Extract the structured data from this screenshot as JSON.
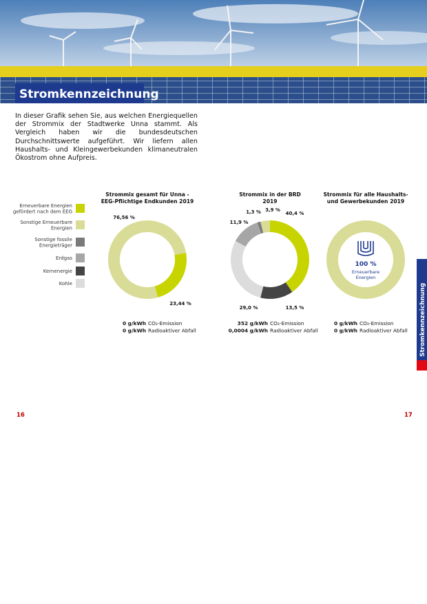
{
  "header": {
    "title": "Stromkennzeichnung"
  },
  "intro": "In dieser Grafik sehen Sie, aus welchen Energiequellen der Strommix der Stadtwerke Unna stammt. Als Vergleich haben wir die bundesdeutschen Durchschnittswerte aufgeführt. Wir liefern allen Haushalts- und Kleingewerbekunden klimaneutralen Ökostrom ohne Aufpreis.",
  "legend": [
    {
      "label": [
        "Erneuerbare Energien",
        "gefördert nach dem EEG"
      ],
      "color": "#c8d400"
    },
    {
      "label": [
        "Sonstige Erneuerbare",
        "Energien"
      ],
      "color": "#d9dc96"
    },
    {
      "label": [
        "Sonstige fossile",
        "Energieträger"
      ],
      "color": "#7a7a7a"
    },
    {
      "label": [
        "Erdgas"
      ],
      "color": "#a6a6a6"
    },
    {
      "label": [
        "Kernenergie"
      ],
      "color": "#444444"
    },
    {
      "label": [
        "Kohle"
      ],
      "color": "#dcdcdc"
    }
  ],
  "chart_data": [
    {
      "type": "pie",
      "title": [
        "Strommix gesamt für Unna -",
        "EEG-Pflichtige Endkunden 2019"
      ],
      "values": [
        23.44,
        76.56
      ],
      "value_labels": [
        "23,44 %",
        "76,56 %"
      ],
      "colors": [
        "#c8d400",
        "#d9dc96"
      ],
      "emissions": [
        {
          "value": "0 g/kWh",
          "label": "CO₂-Emission"
        },
        {
          "value": "0 g/kWh",
          "label": "Radioaktiver Abfall"
        }
      ]
    },
    {
      "type": "pie",
      "title": [
        "Strommix in der BRD",
        "2019"
      ],
      "values": [
        40.4,
        13.5,
        29.0,
        11.9,
        1.3,
        3.9
      ],
      "value_labels": [
        "40,4 %",
        "13,5 %",
        "29,0 %",
        "11,9 %",
        "1,3 %",
        "3,9 %"
      ],
      "colors": [
        "#c8d400",
        "#444444",
        "#dcdcdc",
        "#a6a6a6",
        "#7a7a7a",
        "#d9dc96"
      ],
      "emissions": [
        {
          "value": "352 g/kWh",
          "label": "CO₂-Emission"
        },
        {
          "value": "0,0004 g/kWh",
          "label": "Radioaktiver Abfall"
        }
      ]
    },
    {
      "type": "pie",
      "title": [
        "Strommix für alle Haushalts-",
        "und Gewerbekunden 2019"
      ],
      "values": [
        100
      ],
      "value_labels": [
        "100 %"
      ],
      "colors": [
        "#d9dc96"
      ],
      "center_label": [
        "Erneuerbare",
        "Energien"
      ],
      "emissions": [
        {
          "value": "0 g/kWh",
          "label": "CO₂-Emission"
        },
        {
          "value": "0 g/kWh",
          "label": "Radioaktiver Abfall"
        }
      ]
    }
  ],
  "side_tab": "Stromkennzeichnung",
  "page_numbers": [
    "16",
    "17"
  ]
}
